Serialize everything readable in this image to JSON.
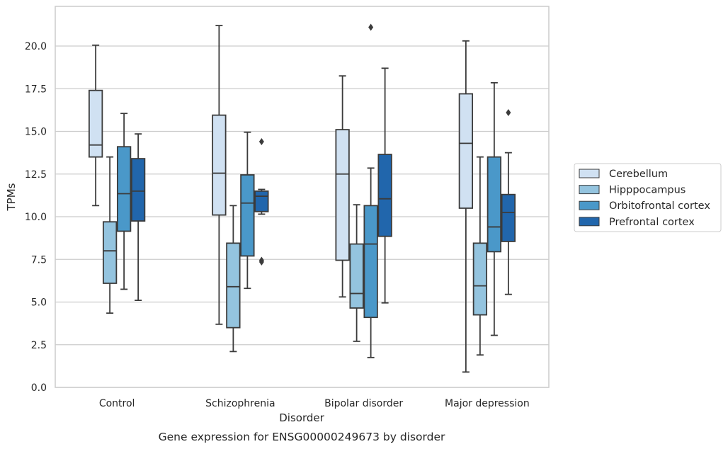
{
  "chart_data": {
    "type": "boxplot",
    "caption": "Gene expression for ENSG00000249673 by disorder",
    "xlabel": "Disorder",
    "ylabel": "TPMs",
    "ylim": [
      0,
      22.3
    ],
    "yticks": [
      "0.0",
      "2.5",
      "5.0",
      "7.5",
      "10.0",
      "12.5",
      "15.0",
      "17.5",
      "20.0"
    ],
    "grid": "horizontal",
    "legend_position": "right",
    "categories": [
      "Control",
      "Schizophrenia",
      "Bipolar disorder",
      "Major depression"
    ],
    "series": [
      {
        "name": "Cerebellum",
        "color": "#d0e1f2",
        "boxes": [
          {
            "whislo": 10.65,
            "q1": 13.5,
            "med": 14.2,
            "q3": 17.4,
            "whishi": 20.05,
            "fliers": []
          },
          {
            "whislo": 3.7,
            "q1": 10.1,
            "med": 12.55,
            "q3": 15.95,
            "whishi": 21.2,
            "fliers": []
          },
          {
            "whislo": 5.3,
            "q1": 7.45,
            "med": 12.5,
            "q3": 15.1,
            "whishi": 18.25,
            "fliers": []
          },
          {
            "whislo": 0.9,
            "q1": 10.5,
            "med": 14.3,
            "q3": 17.2,
            "whishi": 20.3,
            "fliers": []
          }
        ]
      },
      {
        "name": "Hipppocampus",
        "color": "#94c4df",
        "boxes": [
          {
            "whislo": 4.35,
            "q1": 6.1,
            "med": 8.0,
            "q3": 9.7,
            "whishi": 13.5,
            "fliers": []
          },
          {
            "whislo": 2.1,
            "q1": 3.5,
            "med": 5.9,
            "q3": 8.45,
            "whishi": 10.65,
            "fliers": []
          },
          {
            "whislo": 2.7,
            "q1": 4.65,
            "med": 5.5,
            "q3": 8.4,
            "whishi": 10.7,
            "fliers": []
          },
          {
            "whislo": 1.9,
            "q1": 4.25,
            "med": 5.95,
            "q3": 8.45,
            "whishi": 13.5,
            "fliers": []
          }
        ]
      },
      {
        "name": "Orbitofrontal cortex",
        "color": "#4a98c9",
        "boxes": [
          {
            "whislo": 5.75,
            "q1": 9.15,
            "med": 11.35,
            "q3": 14.1,
            "whishi": 16.05,
            "fliers": []
          },
          {
            "whislo": 5.8,
            "q1": 7.7,
            "med": 10.8,
            "q3": 12.45,
            "whishi": 14.95,
            "fliers": []
          },
          {
            "whislo": 1.75,
            "q1": 4.1,
            "med": 8.4,
            "q3": 10.65,
            "whishi": 12.85,
            "fliers": [
              21.1
            ]
          },
          {
            "whislo": 3.05,
            "q1": 7.95,
            "med": 9.4,
            "q3": 13.5,
            "whishi": 17.85,
            "fliers": []
          }
        ]
      },
      {
        "name": "Prefrontal cortex",
        "color": "#2166ac",
        "boxes": [
          {
            "whislo": 5.1,
            "q1": 9.75,
            "med": 11.5,
            "q3": 13.4,
            "whishi": 14.85,
            "fliers": []
          },
          {
            "whislo": 10.15,
            "q1": 10.3,
            "med": 11.2,
            "q3": 11.5,
            "whishi": 11.6,
            "fliers": [
              14.4,
              7.45,
              7.35
            ]
          },
          {
            "whislo": 4.95,
            "q1": 8.85,
            "med": 11.05,
            "q3": 13.65,
            "whishi": 18.7,
            "fliers": []
          },
          {
            "whislo": 5.45,
            "q1": 8.55,
            "med": 10.25,
            "q3": 11.3,
            "whishi": 13.75,
            "fliers": [
              16.1
            ]
          }
        ]
      }
    ]
  }
}
